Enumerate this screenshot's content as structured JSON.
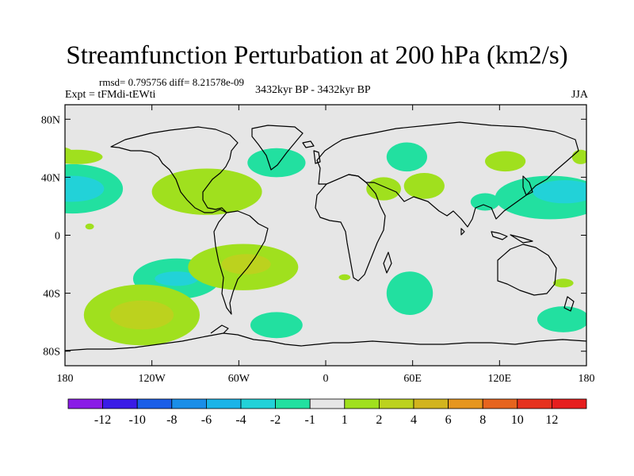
{
  "title": "Streamfunction Perturbation at 200 hPa (km2/s)",
  "stats": "rmsd= 0.795756 diff= 8.21578e-09",
  "experiment": "Expt = tFMdi-tEWti",
  "period": "3432kyr BP - 3432kyr BP",
  "season": "JJA",
  "chart_data": {
    "type": "contour-map",
    "projection": "cylindrical-equidistant",
    "variable": "streamfunction perturbation",
    "level_hPa": 200,
    "units": "km2/s",
    "lon_range": [
      -180,
      180
    ],
    "lat_range": [
      -90,
      90
    ],
    "x_ticks": [
      {
        "value": -180,
        "label": "180"
      },
      {
        "value": -120,
        "label": "120W"
      },
      {
        "value": -60,
        "label": "60W"
      },
      {
        "value": 0,
        "label": "0"
      },
      {
        "value": 60,
        "label": "60E"
      },
      {
        "value": 120,
        "label": "120E"
      },
      {
        "value": 180,
        "label": "180"
      }
    ],
    "y_ticks": [
      {
        "value": 80,
        "label": "80N"
      },
      {
        "value": 40,
        "label": "40N"
      },
      {
        "value": 0,
        "label": "0"
      },
      {
        "value": -40,
        "label": "40S"
      },
      {
        "value": -80,
        "label": "80S"
      }
    ],
    "colorbar": {
      "labels": [
        "-12",
        "-10",
        "-8",
        "-6",
        "-4",
        "-2",
        "-1",
        "1",
        "2",
        "4",
        "6",
        "8",
        "10",
        "12"
      ],
      "colors": [
        "#8a1ce6",
        "#3a1ce6",
        "#1a5ee8",
        "#1a8ee8",
        "#1ab4e8",
        "#22d2d8",
        "#22e0a0",
        "#e6e6e6",
        "#a0e01e",
        "#bcd21e",
        "#d2b41e",
        "#e6961e",
        "#e6641e",
        "#e6321e",
        "#e61e1e"
      ]
    },
    "features": [
      {
        "lon": -175,
        "lat": 32,
        "rlon": 35,
        "rlat": 17,
        "value": -2
      },
      {
        "lon": -175,
        "lat": 32,
        "rlon": 22,
        "rlat": 9,
        "value": -4
      },
      {
        "lon": -172,
        "lat": 54,
        "rlon": 18,
        "rlat": 5,
        "value": 1
      },
      {
        "lon": -184,
        "lat": 56,
        "rlon": 10,
        "rlat": 5,
        "value": 1
      },
      {
        "lon": -163,
        "lat": 6,
        "rlon": 3,
        "rlat": 2,
        "value": 1
      },
      {
        "lon": -82,
        "lat": 30,
        "rlon": 38,
        "rlat": 16,
        "value": 1
      },
      {
        "lon": -103,
        "lat": -30,
        "rlon": 30,
        "rlat": 14,
        "value": -2
      },
      {
        "lon": -103,
        "lat": -30,
        "rlon": 15,
        "rlat": 5,
        "value": -4
      },
      {
        "lon": -127,
        "lat": -55,
        "rlon": 40,
        "rlat": 21,
        "value": 1
      },
      {
        "lon": -127,
        "lat": -55,
        "rlon": 22,
        "rlat": 10,
        "value": 2
      },
      {
        "lon": -57,
        "lat": -22,
        "rlon": 38,
        "rlat": 16,
        "value": 1
      },
      {
        "lon": -55,
        "lat": -20,
        "rlon": 17,
        "rlat": 7,
        "value": 2
      },
      {
        "lon": -34,
        "lat": 50,
        "rlon": 20,
        "rlat": 10,
        "value": -2
      },
      {
        "lon": -34,
        "lat": -62,
        "rlon": 18,
        "rlat": 9,
        "value": -2
      },
      {
        "lon": 13,
        "lat": -29,
        "rlon": 4,
        "rlat": 2,
        "value": 1
      },
      {
        "lon": 40,
        "lat": 32,
        "rlon": 12,
        "rlat": 8,
        "value": 1
      },
      {
        "lon": 68,
        "lat": 34,
        "rlon": 14,
        "rlat": 9,
        "value": 1
      },
      {
        "lon": 56,
        "lat": 54,
        "rlon": 14,
        "rlat": 10,
        "value": -2
      },
      {
        "lon": 124,
        "lat": 51,
        "rlon": 14,
        "rlat": 7,
        "value": 1
      },
      {
        "lon": 110,
        "lat": 23,
        "rlon": 10,
        "rlat": 6,
        "value": -2
      },
      {
        "lon": 58,
        "lat": -40,
        "rlon": 16,
        "rlat": 15,
        "value": -2
      },
      {
        "lon": 155,
        "lat": 26,
        "rlon": 38,
        "rlat": 15,
        "value": -2
      },
      {
        "lon": 165,
        "lat": 30,
        "rlon": 22,
        "rlat": 8,
        "value": -4
      },
      {
        "lon": 176,
        "lat": 54,
        "rlon": 6,
        "rlat": 5,
        "value": 1
      },
      {
        "lon": 164,
        "lat": -58,
        "rlon": 18,
        "rlat": 9,
        "value": -2
      },
      {
        "lon": 164,
        "lat": -33,
        "rlon": 7,
        "rlat": 3,
        "value": 1
      }
    ]
  }
}
